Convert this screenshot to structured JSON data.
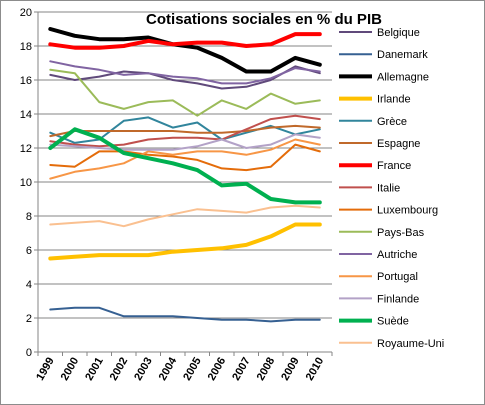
{
  "chart_data": {
    "type": "line",
    "title": "Cotisations sociales en % du PIB",
    "xlabel": "",
    "ylabel": "",
    "ylim": [
      0,
      20
    ],
    "yticks": [
      0,
      2,
      4,
      6,
      8,
      10,
      12,
      14,
      16,
      18,
      20
    ],
    "grid": true,
    "legend": "right",
    "x": [
      "1999",
      "2000",
      "2001",
      "2002",
      "2003",
      "2004",
      "2005",
      "2006",
      "2007",
      "2008",
      "2009",
      "2010"
    ],
    "series": [
      {
        "name": "Belgique",
        "color": "#604a7b",
        "width": 2,
        "values": [
          16.3,
          16.0,
          16.2,
          16.5,
          16.4,
          16.0,
          15.8,
          15.5,
          15.6,
          16.0,
          16.8,
          16.4
        ]
      },
      {
        "name": "Danemark",
        "color": "#366092",
        "width": 2,
        "values": [
          2.5,
          2.6,
          2.6,
          2.1,
          2.1,
          2.1,
          2.0,
          1.9,
          1.9,
          1.8,
          1.9,
          1.9
        ]
      },
      {
        "name": "Allemagne",
        "color": "#000000",
        "width": 4,
        "values": [
          19.0,
          18.6,
          18.4,
          18.4,
          18.5,
          18.1,
          17.9,
          17.3,
          16.5,
          16.5,
          17.3,
          16.9
        ]
      },
      {
        "name": "Irlande",
        "color": "#ffc000",
        "width": 4,
        "values": [
          5.5,
          5.6,
          5.7,
          5.7,
          5.7,
          5.9,
          6.0,
          6.1,
          6.3,
          6.8,
          7.5,
          7.5
        ]
      },
      {
        "name": "Grèce",
        "color": "#31859c",
        "width": 2,
        "values": [
          12.9,
          12.3,
          12.5,
          13.6,
          13.8,
          13.2,
          13.5,
          12.5,
          12.9,
          13.3,
          12.8,
          13.1
        ]
      },
      {
        "name": "Espagne",
        "color": "#c0692b",
        "width": 2,
        "values": [
          12.7,
          13.0,
          13.0,
          13.0,
          13.0,
          13.0,
          12.9,
          12.9,
          13.0,
          13.2,
          13.3,
          13.2
        ]
      },
      {
        "name": "France",
        "color": "#ff0000",
        "width": 4,
        "values": [
          18.1,
          17.9,
          17.9,
          18.0,
          18.3,
          18.1,
          18.2,
          18.2,
          18.0,
          18.1,
          18.7,
          18.7
        ]
      },
      {
        "name": "Italie",
        "color": "#c0504d",
        "width": 2,
        "values": [
          12.4,
          12.2,
          12.1,
          12.2,
          12.5,
          12.6,
          12.6,
          12.5,
          13.1,
          13.7,
          13.9,
          13.7
        ]
      },
      {
        "name": "Luxembourg",
        "color": "#e46c0a",
        "width": 2,
        "values": [
          11.0,
          10.9,
          11.8,
          11.8,
          11.6,
          11.5,
          11.3,
          10.8,
          10.7,
          10.9,
          12.2,
          11.8
        ]
      },
      {
        "name": "Pays-Bas",
        "color": "#9bbb59",
        "width": 2,
        "values": [
          16.6,
          16.4,
          14.7,
          14.3,
          14.7,
          14.8,
          13.9,
          14.8,
          14.3,
          15.2,
          14.6,
          14.8
        ]
      },
      {
        "name": "Autriche",
        "color": "#8064a2",
        "width": 2,
        "values": [
          17.1,
          16.8,
          16.6,
          16.3,
          16.4,
          16.2,
          16.1,
          15.8,
          15.8,
          16.1,
          16.7,
          16.5
        ]
      },
      {
        "name": "Portugal",
        "color": "#f79646",
        "width": 2,
        "values": [
          10.2,
          10.6,
          10.8,
          11.1,
          11.8,
          11.6,
          11.8,
          11.8,
          11.6,
          11.9,
          12.5,
          12.2
        ]
      },
      {
        "name": "Finlande",
        "color": "#b3a2c7",
        "width": 2,
        "values": [
          12.2,
          12.1,
          12.0,
          11.9,
          11.9,
          11.9,
          12.1,
          12.5,
          12.0,
          12.2,
          12.8,
          12.6
        ]
      },
      {
        "name": "Suède",
        "color": "#00b050",
        "width": 4,
        "values": [
          12.0,
          13.1,
          12.6,
          11.7,
          11.4,
          11.1,
          10.7,
          9.8,
          9.9,
          9.0,
          8.8,
          8.8
        ]
      },
      {
        "name": "Royaume-Uni",
        "color": "#fac090",
        "width": 2,
        "values": [
          7.5,
          7.6,
          7.7,
          7.4,
          7.8,
          8.1,
          8.4,
          8.3,
          8.2,
          8.5,
          8.6,
          8.5
        ]
      }
    ]
  }
}
